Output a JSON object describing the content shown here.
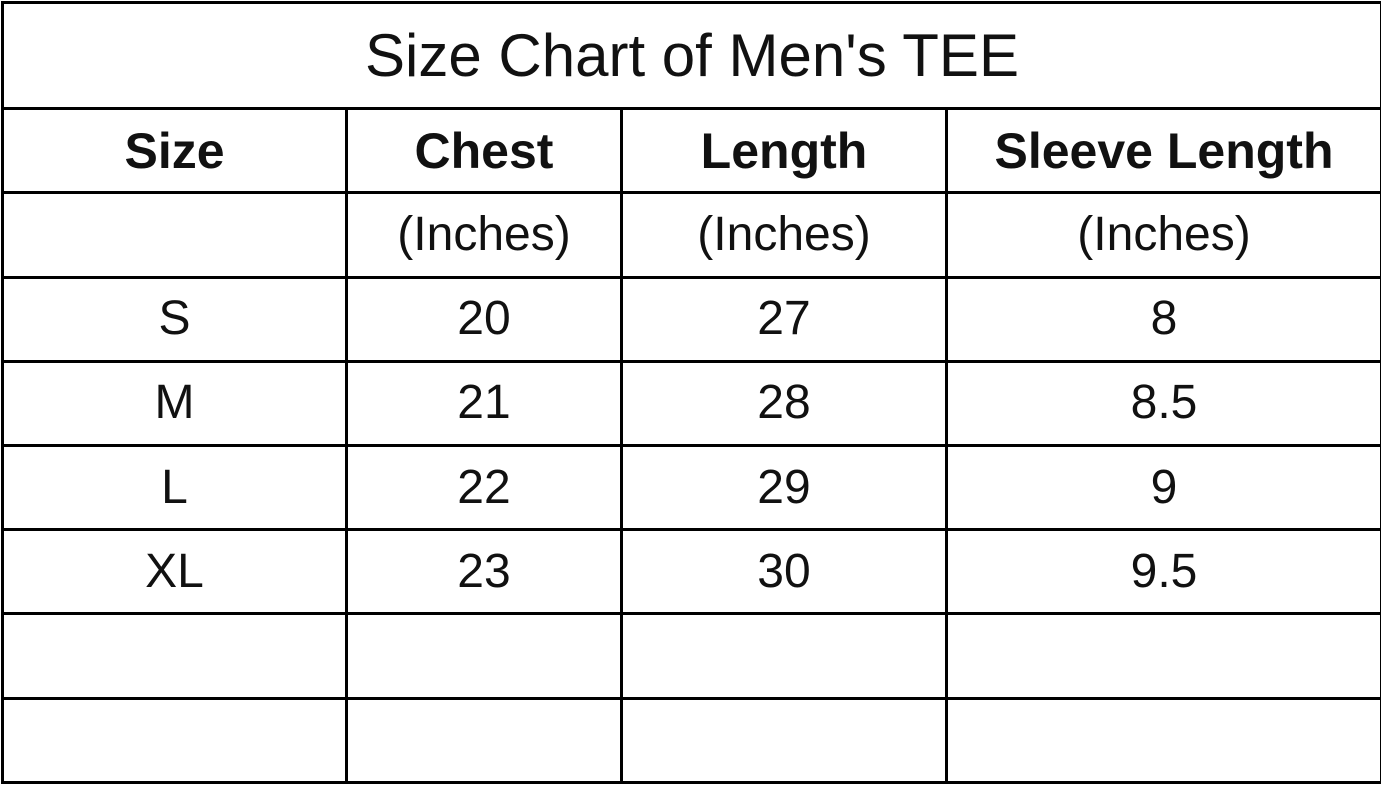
{
  "title": "Size Chart of Men's TEE",
  "table": {
    "header": [
      "Size",
      "Chest",
      "Length",
      "Sleeve Length"
    ],
    "units": [
      "(Inches)",
      "(Inches)",
      "(Inches)"
    ],
    "rows": [
      [
        "S",
        20,
        27,
        8
      ],
      [
        "M",
        21,
        28,
        8.5
      ],
      [
        "L",
        22,
        29,
        9
      ],
      [
        "XL",
        23,
        30,
        9.5
      ]
    ]
  }
}
